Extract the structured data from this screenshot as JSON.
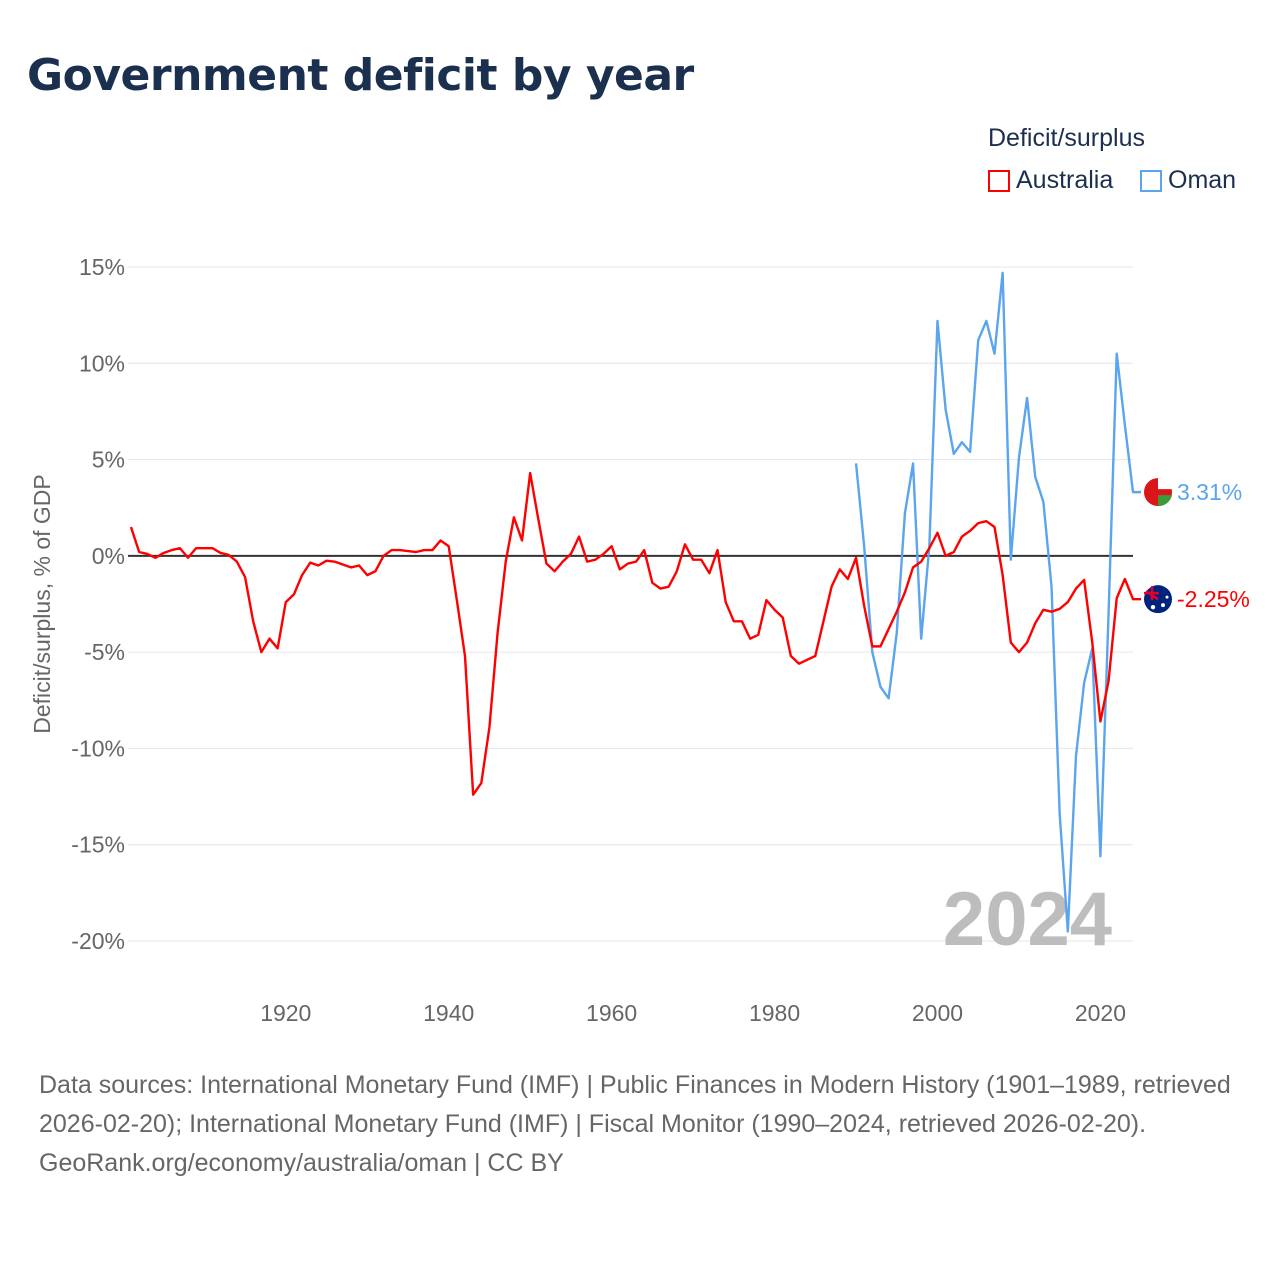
{
  "title": "Government deficit by year",
  "legend": {
    "title": "Deficit/surplus",
    "items": [
      {
        "name": "Australia",
        "color": "#ff0000"
      },
      {
        "name": "Oman",
        "color": "#5aa5ee"
      }
    ]
  },
  "chart_data": {
    "type": "line",
    "title": "Government deficit by year",
    "xlabel": "",
    "ylabel": "Deficit/surplus, % of GDP",
    "xlim": [
      1901,
      2024
    ],
    "ylim": [
      -20,
      15
    ],
    "yticks": [
      15,
      10,
      5,
      0,
      -5,
      -10,
      -15,
      -20
    ],
    "ytick_labels": [
      "15%",
      "10%",
      "5%",
      "0%",
      "-5%",
      "-10%",
      "-15%",
      "-20%"
    ],
    "xticks": [
      1920,
      1940,
      1960,
      1980,
      2000,
      2020
    ],
    "xtick_labels": [
      "1920",
      "1940",
      "1960",
      "1980",
      "2000",
      "2020"
    ],
    "grid": true,
    "legend_position": "top-right",
    "year_watermark": "2024",
    "series": [
      {
        "name": "Australia",
        "color": "#ff0000",
        "start_year": 1901,
        "end_label": "-2.25%",
        "values": [
          1.5,
          0.2,
          0.1,
          -0.1,
          0.15,
          0.3,
          0.4,
          -0.1,
          0.4,
          0.4,
          0.4,
          0.15,
          0.05,
          -0.3,
          -1.1,
          -3.4,
          -5.0,
          -4.3,
          -4.8,
          -2.4,
          -2.0,
          -1.0,
          -0.35,
          -0.5,
          -0.25,
          -0.3,
          -0.45,
          -0.6,
          -0.5,
          -1.0,
          -0.8,
          0,
          0.3,
          0.3,
          0.25,
          0.2,
          0.3,
          0.3,
          0.8,
          0.5,
          -2.3,
          -5.2,
          -12.4,
          -11.8,
          -8.9,
          -4.0,
          -0.3,
          2.0,
          0.8,
          4.3,
          1.9,
          -0.4,
          -0.8,
          -0.3,
          0.1,
          1.0,
          -0.3,
          -0.2,
          0.1,
          0.5,
          -0.7,
          -0.4,
          -0.3,
          0.3,
          -1.4,
          -1.7,
          -1.6,
          -0.8,
          0.6,
          -0.2,
          -0.2,
          -0.9,
          0.3,
          -2.4,
          -3.4,
          -3.4,
          -4.3,
          -4.1,
          -2.3,
          -2.8,
          -3.2,
          -5.2,
          -5.6,
          -5.4,
          -5.2,
          -3.4,
          -1.6,
          -0.7,
          -1.2,
          -0.1,
          -2.6,
          -4.7,
          -4.7,
          -3.8,
          -2.9,
          -1.9,
          -0.6,
          -0.3,
          0.4,
          1.2,
          0,
          0.2,
          1.0,
          1.3,
          1.7,
          1.8,
          1.5,
          -1.0,
          -4.5,
          -5.0,
          -4.5,
          -3.5,
          -2.8,
          -2.9,
          -2.75,
          -2.4,
          -1.7,
          -1.25,
          -4.5,
          -8.6,
          -6.5,
          -2.2,
          -1.2,
          -2.25
        ]
      },
      {
        "name": "Oman",
        "color": "#5aa5ee",
        "start_year": 1990,
        "end_label": "3.31%",
        "values": [
          4.8,
          0.5,
          -5.0,
          -6.8,
          -7.4,
          -4.0,
          2.2,
          4.8,
          -4.3,
          0.5,
          12.2,
          7.6,
          5.3,
          5.9,
          5.4,
          11.2,
          12.2,
          10.5,
          14.7,
          -0.2,
          5.1,
          8.2,
          4.1,
          2.8,
          -1.6,
          -13.4,
          -19.5,
          -10.4,
          -6.6,
          -4.8,
          -15.6,
          -3.0,
          10.5,
          6.8,
          3.31
        ]
      }
    ]
  },
  "footer": {
    "sources": "Data sources: International Monetary Fund (IMF) | Public Finances in Modern History (1901–1989, retrieved 2026-02-20); International Monetary Fund (IMF) | Fiscal Monitor (1990–2024, retrieved 2026-02-20).",
    "credit": "GeoRank.org/economy/australia/oman | CC BY"
  }
}
